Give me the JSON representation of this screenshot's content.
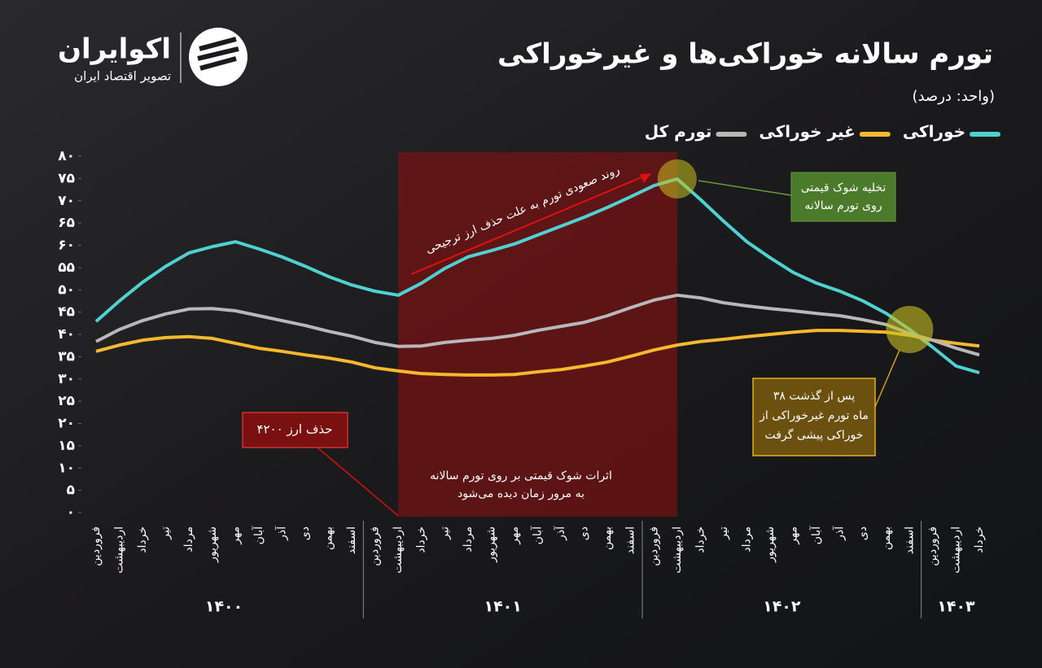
{
  "logo": {
    "name": "اکوایران",
    "tagline": "تصویر اقتصاد ایران"
  },
  "chart_data": {
    "type": "line",
    "title": "تورم سالانه خوراکی‌ها و غیرخوراکی",
    "subtitle": "(واحد: درصد)",
    "categories": [
      "فروردین",
      "اردیبهشت",
      "خرداد",
      "تیر",
      "مرداد",
      "شهریور",
      "مهر",
      "آبان",
      "آذر",
      "دی",
      "بهمن",
      "اسفند",
      "فروردین",
      "اردیبهشت",
      "خرداد",
      "تیر",
      "مرداد",
      "شهریور",
      "مهر",
      "آبان",
      "آذر",
      "دی",
      "بهمن",
      "اسفند",
      "فروردین",
      "اردیبهشت",
      "خرداد",
      "تیر",
      "مرداد",
      "شهریور",
      "مهر",
      "آبان",
      "آذر",
      "دی",
      "بهمن",
      "اسفند",
      "فروردین",
      "اردیبهشت",
      "خرداد"
    ],
    "years": [
      "۱۴۰۰",
      "۱۴۰۱",
      "۱۴۰۲",
      "۱۴۰۳"
    ],
    "series": [
      {
        "name": "خوراکی",
        "color": "#4fd1d1",
        "values": [
          42.9,
          47.5,
          51.7,
          55.3,
          58.3,
          59.7,
          60.8,
          59.2,
          57.4,
          55.3,
          53,
          51.1,
          49.7,
          48.8,
          51.5,
          54.8,
          57.4,
          58.8,
          60.3,
          62.3,
          64.3,
          66.3,
          68.5,
          70.9,
          73.4,
          74.9,
          70.3,
          65.4,
          60.8,
          57.2,
          53.9,
          51.5,
          49.7,
          47.5,
          44.7,
          41.1,
          37.1,
          32.9,
          31.4
        ]
      },
      {
        "name": "غیر خوراکی",
        "color": "#f5b82e",
        "values": [
          36.2,
          37.6,
          38.7,
          39.3,
          39.5,
          39.1,
          38,
          36.9,
          36.2,
          35.4,
          34.7,
          33.8,
          32.5,
          31.8,
          31.2,
          31,
          30.9,
          30.9,
          31,
          31.6,
          32.1,
          32.9,
          33.8,
          35.1,
          36.5,
          37.6,
          38.4,
          38.9,
          39.5,
          40,
          40.5,
          40.9,
          40.9,
          40.7,
          40.5,
          39.8,
          38.7,
          38,
          37.4
        ]
      },
      {
        "name": "تورم کل",
        "color": "#b8b8b8",
        "values": [
          38.4,
          41.1,
          43.1,
          44.6,
          45.7,
          45.8,
          45.3,
          44.2,
          43.1,
          42,
          40.7,
          39.6,
          38.2,
          37.3,
          37.4,
          38.2,
          38.7,
          39.1,
          39.8,
          40.9,
          41.8,
          42.7,
          44.2,
          46,
          47.7,
          48.8,
          48.2,
          47.1,
          46.4,
          45.8,
          45.3,
          44.7,
          44.2,
          43.3,
          42.2,
          40.2,
          38.7,
          36.9,
          35.4
        ]
      }
    ],
    "ylim": [
      0,
      80
    ],
    "yticks": [
      {
        "value": 0,
        "label": "۰"
      },
      {
        "value": 5,
        "label": "۵"
      },
      {
        "value": 10,
        "label": "۱۰"
      },
      {
        "value": 15,
        "label": "۱۵"
      },
      {
        "value": 20,
        "label": "۲۰"
      },
      {
        "value": 25,
        "label": "۲۵"
      },
      {
        "value": 30,
        "label": "۳۰"
      },
      {
        "value": 35,
        "label": "۳۵"
      },
      {
        "value": 40,
        "label": "۴۰"
      },
      {
        "value": 45,
        "label": "۴۵"
      },
      {
        "value": 50,
        "label": "۵۰"
      },
      {
        "value": 55,
        "label": "۵۵"
      },
      {
        "value": 60,
        "label": "۶۰"
      },
      {
        "value": 65,
        "label": "۶۵"
      },
      {
        "value": 70,
        "label": "۷۰"
      },
      {
        "value": 75,
        "label": "۷۵"
      },
      {
        "value": 80,
        "label": "۸۰"
      }
    ],
    "legend": "top-right",
    "annotations": {
      "trend": "روند صعودی تورم به علت حذف ارز ترجیحی",
      "shock": [
        "تخلیه شوک قیمتی",
        "روی تورم سالانه"
      ],
      "cross": [
        "پس از گذشت ۳۸",
        "ماه تورم غیرخوراکی از",
        "خوراکی پیشی گرفت"
      ],
      "removal": "حذف ارز ۴۲۰۰",
      "effects": [
        "اثرات شوک قیمتی بر روی تورم سالانه",
        "به مرور زمان دیده می‌شود"
      ]
    }
  }
}
